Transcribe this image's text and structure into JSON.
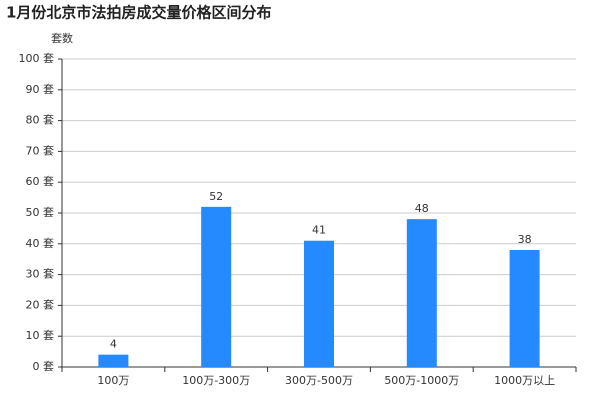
{
  "chart_data": {
    "type": "bar",
    "title": "1月份北京市法拍房成交量价格区间分布",
    "y_label": "套数",
    "categories": [
      "100万",
      "100万-300万",
      "300万-500万",
      "500万-1000万",
      "1000万以上"
    ],
    "values": [
      4,
      52,
      41,
      48,
      38
    ],
    "color": "#2589ff",
    "ylim": [
      0,
      100
    ],
    "yticks": [
      {
        "value": 0,
        "label": "0 套"
      },
      {
        "value": 10,
        "label": "10 套"
      },
      {
        "value": 20,
        "label": "20 套"
      },
      {
        "value": 30,
        "label": "30 套"
      },
      {
        "value": 40,
        "label": "40 套"
      },
      {
        "value": 50,
        "label": "50 套"
      },
      {
        "value": 60,
        "label": "60 套"
      },
      {
        "value": 70,
        "label": "70 套"
      },
      {
        "value": 80,
        "label": "80 套"
      },
      {
        "value": 90,
        "label": "90 套"
      },
      {
        "value": 100,
        "label": "100 套"
      }
    ],
    "grid": true
  }
}
